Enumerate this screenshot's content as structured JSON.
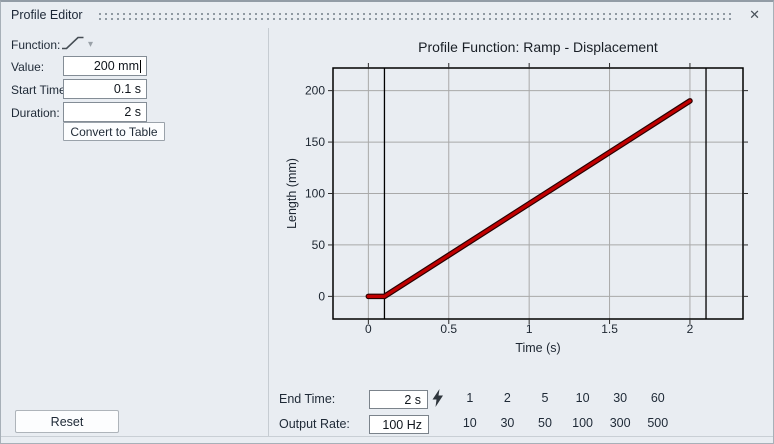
{
  "titlebar": {
    "title": "Profile Editor",
    "close_glyph": "✕"
  },
  "form": {
    "function_label": "Function:",
    "value_label": "Value:",
    "value": "200 mm",
    "value_caret_visible": true,
    "start_time_label": "Start Time:",
    "start_time": "0.1 s",
    "duration_label": "Duration:",
    "duration": "2 s",
    "convert_button_label": "Convert to Table",
    "reset_button_label": "Reset"
  },
  "icons": {
    "function_icon": "ramp-function",
    "dropdown_caret_glyph": "▾",
    "lightning_icon": "apply-lightning",
    "close_icon": "close-x"
  },
  "chart_data": {
    "type": "line",
    "title": "Profile Function: Ramp - Displacement",
    "xlabel": "Time (s)",
    "ylabel": "Length (mm)",
    "xlim": [
      -0.22,
      2.33
    ],
    "ylim": [
      -22,
      222
    ],
    "x_ticks": [
      "0",
      "0.5",
      "1",
      "1.5",
      "2"
    ],
    "y_ticks": [
      "0",
      "50",
      "100",
      "150",
      "200"
    ],
    "grid": true,
    "grid_color": "#a9a9a9",
    "legend": "none",
    "series": [
      {
        "name": "Ramp - Displacement",
        "color": "#c00000",
        "edge_color": "#2a0000",
        "x": [
          0,
          0.1,
          2.0
        ],
        "y": [
          0,
          0,
          190
        ]
      }
    ],
    "cursor_lines_x": [
      0.1,
      2.1
    ],
    "cursor_color": "#000000"
  },
  "footer": {
    "end_time_label": "End Time:",
    "end_time_value": "2 s",
    "end_time_presets": [
      "1",
      "2",
      "5",
      "10",
      "30",
      "60"
    ],
    "output_rate_label": "Output Rate:",
    "output_rate_value": "100 Hz",
    "output_rate_presets": [
      "10",
      "30",
      "50",
      "100",
      "300",
      "500"
    ]
  },
  "colors": {
    "panel_bg": "#e9edf2",
    "text": "#202a36",
    "series_red": "#c00000",
    "divider": "#c6ccd2"
  }
}
